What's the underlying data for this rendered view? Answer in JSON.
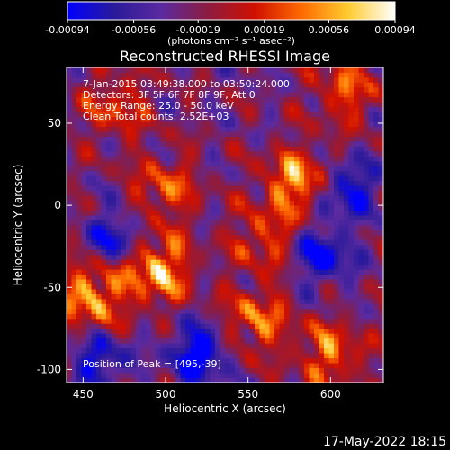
{
  "chart_data": {
    "type": "heatmap",
    "title": "Reconstructed RHESSI Image",
    "xlabel": "Heliocentric X (arcsec)",
    "ylabel": "Heliocentric Y (arcsec)",
    "xlim": [
      440,
      632
    ],
    "ylim": [
      -108,
      84
    ],
    "x_ticks": [
      {
        "value": 450,
        "label": "450"
      },
      {
        "value": 500,
        "label": "500"
      },
      {
        "value": 550,
        "label": "550"
      },
      {
        "value": 600,
        "label": "600"
      }
    ],
    "y_ticks": [
      {
        "value": 50,
        "label": "50"
      },
      {
        "value": 0,
        "label": "0"
      },
      {
        "value": -50,
        "label": "-50"
      },
      {
        "value": -100,
        "label": "-100"
      }
    ],
    "colorbar": {
      "min": -0.00094,
      "max": 0.00094,
      "ticks": [
        {
          "value": -0.00094,
          "label": "-0.00094"
        },
        {
          "value": -0.00056,
          "label": "-0.00056"
        },
        {
          "value": -0.00019,
          "label": "-0.00019"
        },
        {
          "value": 0.00019,
          "label": "0.00019"
        },
        {
          "value": 0.00056,
          "label": "0.00056"
        },
        {
          "value": 0.00094,
          "label": "0.00094"
        }
      ],
      "unit_label": "(photons cm⁻² s⁻¹ asec⁻²)",
      "colors": [
        "#0000ff",
        "#2a1a9a",
        "#5a2aa0",
        "#8c1c40",
        "#d01000",
        "#ff6a00",
        "#ffcc30",
        "#ffffff"
      ]
    },
    "annotations": {
      "time_range": "7-Jan-2015 03:49:38.000 to 03:50:24.000",
      "detectors": "Detectors: 3F 5F 6F 7F 8F 9F, Att 0",
      "energy": "Energy Range: 25.0 - 50.0 keV",
      "clean": "Clean     Total counts: 2.52E+03",
      "peak": "Position of Peak = [495,-39]"
    },
    "peak": {
      "x": 495,
      "y": -39
    },
    "bright_sources": [
      {
        "x": 470,
        "y": 60,
        "strength": 0.55
      },
      {
        "x": 500,
        "y": 10,
        "strength": 0.6
      },
      {
        "x": 580,
        "y": 15,
        "strength": 0.9
      },
      {
        "x": 560,
        "y": -20,
        "strength": 0.55
      },
      {
        "x": 495,
        "y": -39,
        "strength": 1.0
      },
      {
        "x": 455,
        "y": -55,
        "strength": 0.9
      },
      {
        "x": 555,
        "y": -70,
        "strength": 0.7
      },
      {
        "x": 600,
        "y": -90,
        "strength": 0.7
      },
      {
        "x": 610,
        "y": 70,
        "strength": 0.6
      }
    ],
    "dark_sources": [
      {
        "x": 520,
        "y": -90,
        "strength": 0.7
      },
      {
        "x": 595,
        "y": -30,
        "strength": 0.6
      },
      {
        "x": 470,
        "y": -20,
        "strength": 0.5
      },
      {
        "x": 610,
        "y": 10,
        "strength": 0.6
      },
      {
        "x": 460,
        "y": -95,
        "strength": 0.5
      }
    ]
  },
  "footer": {
    "date": "17-May-2022 18:15"
  }
}
